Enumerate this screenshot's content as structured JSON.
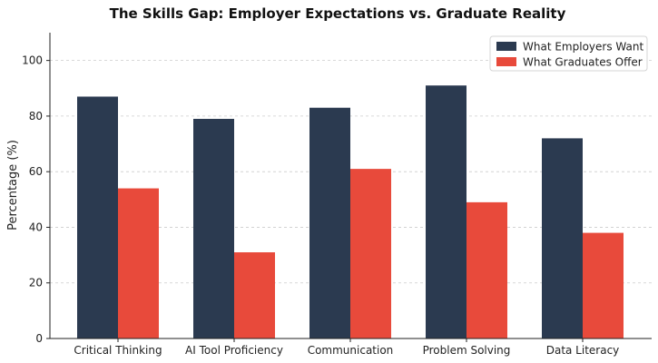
{
  "chart_data": {
    "type": "bar",
    "title": "The Skills Gap: Employer Expectations vs. Graduate Reality",
    "xlabel": "",
    "ylabel": "Percentage (%)",
    "ylim": [
      0,
      110
    ],
    "yticks": [
      0,
      20,
      40,
      60,
      80,
      100
    ],
    "grid": "horizontal dashed",
    "legend_position": "top-right",
    "categories": [
      "Critical Thinking",
      "AI Tool Proficiency",
      "Communication",
      "Problem Solving",
      "Data Literacy"
    ],
    "series": [
      {
        "name": "What Employers Want",
        "color": "#2b3a50",
        "values": [
          87,
          79,
          83,
          91,
          72
        ]
      },
      {
        "name": "What Graduates Offer",
        "color": "#e84a3b",
        "values": [
          54,
          31,
          61,
          49,
          38
        ]
      }
    ]
  }
}
